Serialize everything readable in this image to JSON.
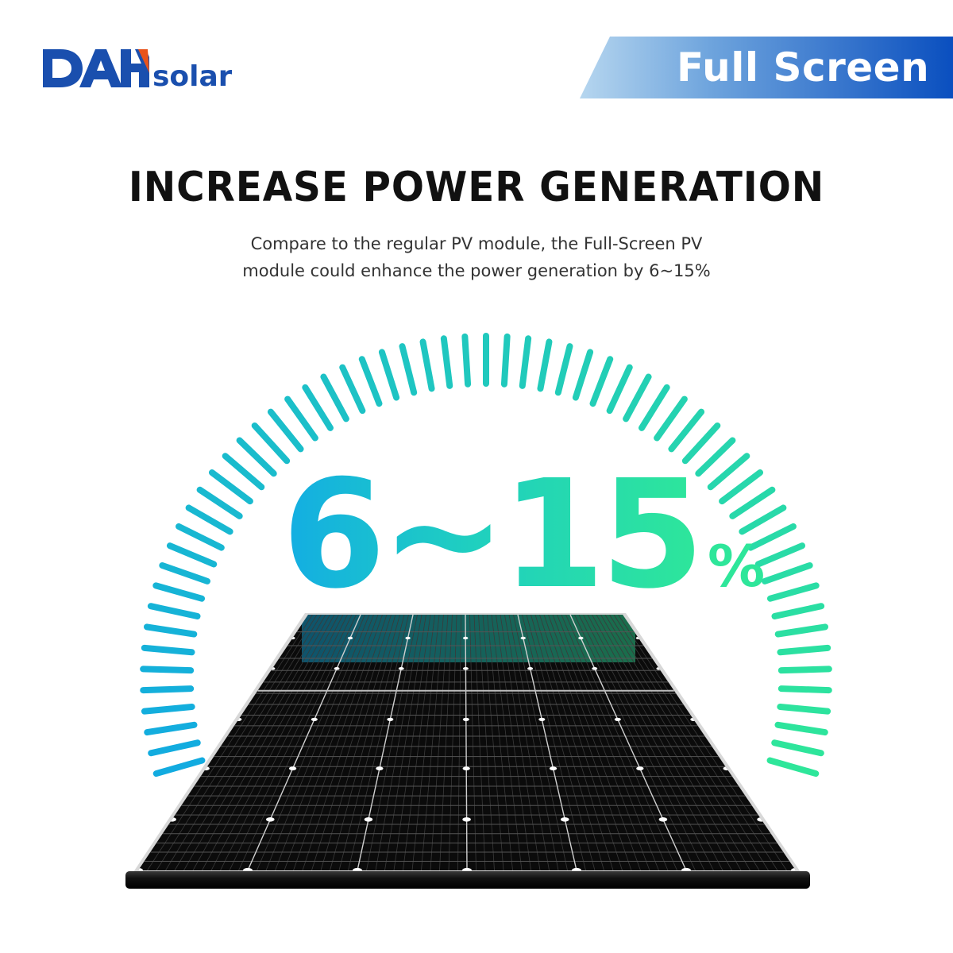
{
  "brand": {
    "logo_text_main": "DAH",
    "logo_text_suffix": "solar",
    "logo_color": "#1a4fae",
    "logo_accent_color": "#e8541c"
  },
  "banner": {
    "label": "Full Screen",
    "gradient_start": "#b6d6ef",
    "gradient_end": "#0a4fbf"
  },
  "headline": "INCREASE POWER GENERATION",
  "subtitle": {
    "line1": "Compare to the regular PV module, the Full-Screen PV",
    "line2": "module could enhance the power generation by 6~15%"
  },
  "highlight": {
    "value": "6~15",
    "unit": "%",
    "gradient": [
      "#13ade3",
      "#1fcfc0",
      "#2ee69a"
    ]
  },
  "gauge": {
    "tick_color_start": "#12abe0",
    "tick_color_end": "#2ee69a",
    "tick_count": 72
  },
  "product": {
    "name": "full-screen-pv-module",
    "cell_color": "#0c0c0c",
    "frame_color": "#1a1a1a"
  }
}
